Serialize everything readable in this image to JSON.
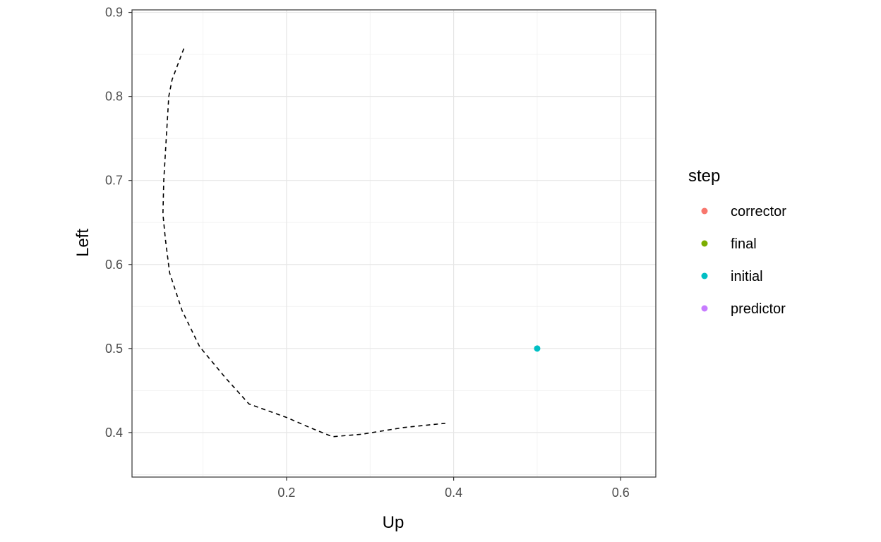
{
  "chart_data": {
    "type": "scatter",
    "xlabel": "Up",
    "ylabel": "Left",
    "xlim": [
      0.015,
      0.642
    ],
    "ylim": [
      0.347,
      0.903
    ],
    "x_ticks": [
      0.2,
      0.4,
      0.6
    ],
    "x_tick_labels": [
      "0.2",
      "0.4",
      "0.6"
    ],
    "y_ticks": [
      0.4,
      0.5,
      0.6,
      0.7,
      0.8,
      0.9
    ],
    "y_tick_labels": [
      "0.4",
      "0.5",
      "0.6",
      "0.7",
      "0.8",
      "0.9"
    ],
    "grid": true,
    "theme": "bw",
    "legend": {
      "title": "step",
      "position": "right",
      "entries": [
        {
          "label": "corrector",
          "color": "#F8766D"
        },
        {
          "label": "final",
          "color": "#7CAE00"
        },
        {
          "label": "initial",
          "color": "#00BFC4"
        },
        {
          "label": "predictor",
          "color": "#C77CFF"
        }
      ]
    },
    "points": [
      {
        "x": 0.5,
        "y": 0.5,
        "step": "initial"
      }
    ],
    "path": {
      "style": "dashed",
      "color": "#000000",
      "x": [
        0.077,
        0.063,
        0.059,
        0.056,
        0.053,
        0.052,
        0.055,
        0.06,
        0.075,
        0.096,
        0.127,
        0.155,
        0.2,
        0.23,
        0.255,
        0.29,
        0.34,
        0.39
      ],
      "y": [
        0.857,
        0.82,
        0.8,
        0.75,
        0.7,
        0.66,
        0.63,
        0.59,
        0.545,
        0.502,
        0.465,
        0.434,
        0.418,
        0.405,
        0.395,
        0.398,
        0.406,
        0.411
      ]
    }
  }
}
